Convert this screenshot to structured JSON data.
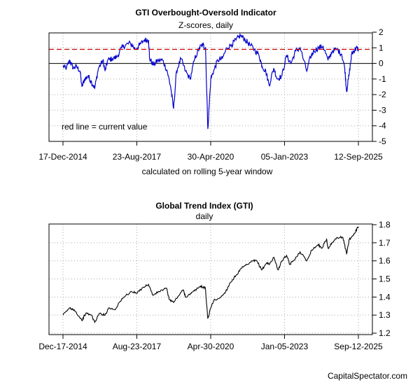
{
  "chart_data": [
    {
      "type": "line",
      "title": "GTI Overbought-Oversold Indicator",
      "subtitle": "Z-scores, daily",
      "xlabel": "calculated on rolling 5-year window",
      "ylabel": "",
      "annotation": "red line = current value",
      "x_tick_labels": [
        "17-Dec-2014",
        "23-Aug-2017",
        "30-Apr-2020",
        "05-Jan-2023",
        "12-Sep-2025"
      ],
      "x_ticks": [
        "2014-12-17",
        "2017-08-23",
        "2020-04-30",
        "2023-01-05",
        "2025-09-12"
      ],
      "y_ticks": [
        2,
        1,
        0,
        -1,
        -2,
        -3,
        -4,
        -5
      ],
      "ylim": [
        -5,
        2
      ],
      "xlim": [
        "2014-12-17",
        "2025-09-12"
      ],
      "reference_lines": {
        "zero": 0,
        "current_value": 0.9
      },
      "grid": true,
      "series": [
        {
          "color": "#0000cc",
          "x": [
            "2014-12-17",
            "2015-02-01",
            "2015-03-15",
            "2015-05-01",
            "2015-06-15",
            "2015-08-01",
            "2015-08-25",
            "2015-10-01",
            "2015-11-15",
            "2016-01-01",
            "2016-02-11",
            "2016-04-01",
            "2016-06-01",
            "2016-06-27",
            "2016-08-01",
            "2016-10-01",
            "2016-12-01",
            "2017-02-01",
            "2017-04-01",
            "2017-06-01",
            "2017-08-01",
            "2017-10-01",
            "2017-12-01",
            "2018-01-26",
            "2018-02-09",
            "2018-04-01",
            "2018-06-01",
            "2018-08-01",
            "2018-10-01",
            "2018-11-15",
            "2018-12-24",
            "2019-02-01",
            "2019-04-01",
            "2019-06-01",
            "2019-08-01",
            "2019-10-01",
            "2019-12-01",
            "2020-01-17",
            "2020-02-21",
            "2020-03-23",
            "2020-05-01",
            "2020-06-15",
            "2020-08-01",
            "2020-10-01",
            "2020-12-01",
            "2021-02-01",
            "2021-04-01",
            "2021-06-01",
            "2021-08-01",
            "2021-10-01",
            "2021-12-01",
            "2022-02-01",
            "2022-03-15",
            "2022-05-01",
            "2022-06-16",
            "2022-08-15",
            "2022-10-01",
            "2022-12-01",
            "2023-02-01",
            "2023-04-01",
            "2023-06-01",
            "2023-08-01",
            "2023-10-27",
            "2023-12-15",
            "2024-02-01",
            "2024-04-01",
            "2024-06-01",
            "2024-08-05",
            "2024-10-01",
            "2024-12-01",
            "2025-02-01",
            "2025-03-15",
            "2025-04-08",
            "2025-05-15",
            "2025-06-15",
            "2025-07-15",
            "2025-08-15",
            "2025-09-12"
          ],
          "y": [
            -0.2,
            -0.3,
            0.2,
            -0.3,
            -0.2,
            -0.5,
            -1.5,
            -1.0,
            -0.8,
            -1.2,
            -1.6,
            -0.3,
            0.2,
            -0.5,
            0.2,
            0.3,
            0.4,
            1.0,
            1.2,
            1.3,
            0.9,
            1.2,
            1.5,
            1.5,
            0.3,
            -0.1,
            0.2,
            0.2,
            -0.5,
            -1.5,
            -2.9,
            -0.5,
            0.3,
            -0.5,
            -1.0,
            0.3,
            1.0,
            1.2,
            1.0,
            -4.2,
            -1.0,
            -0.4,
            0.2,
            0.3,
            1.0,
            1.2,
            1.5,
            1.8,
            1.5,
            1.2,
            0.9,
            0.5,
            -0.2,
            -0.5,
            -1.4,
            -0.3,
            -1.0,
            -0.8,
            0.5,
            0.0,
            0.8,
            1.0,
            -0.5,
            0.4,
            0.8,
            1.0,
            1.1,
            0.2,
            0.8,
            0.9,
            0.6,
            -0.3,
            -1.8,
            -0.6,
            0.6,
            0.8,
            1.0,
            0.9
          ]
        }
      ]
    },
    {
      "type": "line",
      "title": "Global Trend Index (GTI)",
      "subtitle": "daily",
      "xlabel": "",
      "ylabel": "",
      "x_tick_labels": [
        "Dec-17-2014",
        "Aug-23-2017",
        "Apr-30-2020",
        "Jan-05-2023",
        "Sep-12-2025"
      ],
      "x_ticks": [
        "2014-12-17",
        "2017-08-23",
        "2020-04-30",
        "2023-01-05",
        "2025-09-12"
      ],
      "y_ticks": [
        1.8,
        1.7,
        1.6,
        1.5,
        1.4,
        1.3,
        1.2
      ],
      "ylim": [
        1.2,
        1.8
      ],
      "xlim": [
        "2014-12-17",
        "2025-09-12"
      ],
      "grid": true,
      "series": [
        {
          "color": "#000000",
          "x": [
            "2014-12-17",
            "2015-03-15",
            "2015-05-15",
            "2015-08-25",
            "2015-10-15",
            "2016-01-01",
            "2016-02-11",
            "2016-04-15",
            "2016-06-27",
            "2016-08-15",
            "2016-11-08",
            "2017-01-01",
            "2017-04-01",
            "2017-06-15",
            "2017-08-23",
            "2017-11-01",
            "2018-01-26",
            "2018-03-23",
            "2018-06-15",
            "2018-09-20",
            "2018-10-25",
            "2018-12-24",
            "2019-02-15",
            "2019-05-01",
            "2019-06-03",
            "2019-08-15",
            "2019-10-15",
            "2019-12-15",
            "2020-02-19",
            "2020-03-23",
            "2020-05-01",
            "2020-06-08",
            "2020-09-15",
            "2020-11-15",
            "2021-01-15",
            "2021-04-01",
            "2021-06-15",
            "2021-09-01",
            "2021-11-15",
            "2022-01-03",
            "2022-03-08",
            "2022-05-15",
            "2022-06-16",
            "2022-08-16",
            "2022-10-12",
            "2022-12-01",
            "2023-02-01",
            "2023-03-15",
            "2023-05-01",
            "2023-07-31",
            "2023-10-27",
            "2023-12-31",
            "2024-03-28",
            "2024-05-15",
            "2024-07-16",
            "2024-08-05",
            "2024-09-30",
            "2024-12-06",
            "2025-02-18",
            "2025-04-08",
            "2025-05-15",
            "2025-07-01",
            "2025-08-15",
            "2025-09-12"
          ],
          "y": [
            1.3,
            1.34,
            1.33,
            1.27,
            1.31,
            1.3,
            1.26,
            1.31,
            1.3,
            1.34,
            1.33,
            1.37,
            1.41,
            1.43,
            1.42,
            1.45,
            1.47,
            1.41,
            1.43,
            1.45,
            1.39,
            1.37,
            1.4,
            1.44,
            1.4,
            1.42,
            1.44,
            1.46,
            1.45,
            1.28,
            1.34,
            1.38,
            1.4,
            1.43,
            1.48,
            1.52,
            1.56,
            1.58,
            1.6,
            1.6,
            1.55,
            1.59,
            1.58,
            1.62,
            1.55,
            1.6,
            1.63,
            1.58,
            1.6,
            1.65,
            1.6,
            1.66,
            1.69,
            1.67,
            1.72,
            1.67,
            1.7,
            1.73,
            1.73,
            1.64,
            1.72,
            1.74,
            1.77,
            1.79
          ]
        }
      ]
    }
  ],
  "credit": "CapitalSpectator.com"
}
